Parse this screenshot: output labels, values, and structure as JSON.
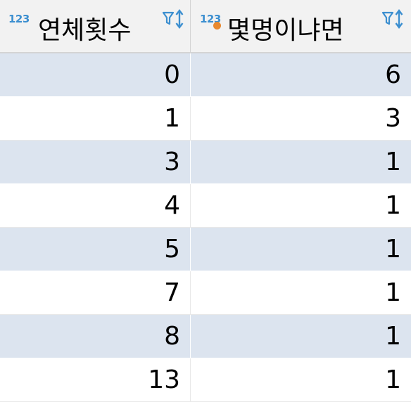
{
  "columns": [
    {
      "type_label": "123",
      "title": "연체횟수",
      "is_key": false,
      "icon": "filter-sort-icon"
    },
    {
      "type_label": "123",
      "title": "몇명이냐면",
      "is_key": true,
      "icon": "filter-sort-icon"
    }
  ],
  "rows": [
    {
      "col1": "0",
      "col2": "6"
    },
    {
      "col1": "1",
      "col2": "3"
    },
    {
      "col1": "3",
      "col2": "1"
    },
    {
      "col1": "4",
      "col2": "1"
    },
    {
      "col1": "5",
      "col2": "1"
    },
    {
      "col1": "7",
      "col2": "1"
    },
    {
      "col1": "8",
      "col2": "1"
    },
    {
      "col1": "13",
      "col2": "1"
    }
  ],
  "colors": {
    "stripe": "#dce4ef",
    "header_bg": "#f2f2f2",
    "type_badge": "#3c8fd0",
    "key_dot": "#e8892f"
  }
}
